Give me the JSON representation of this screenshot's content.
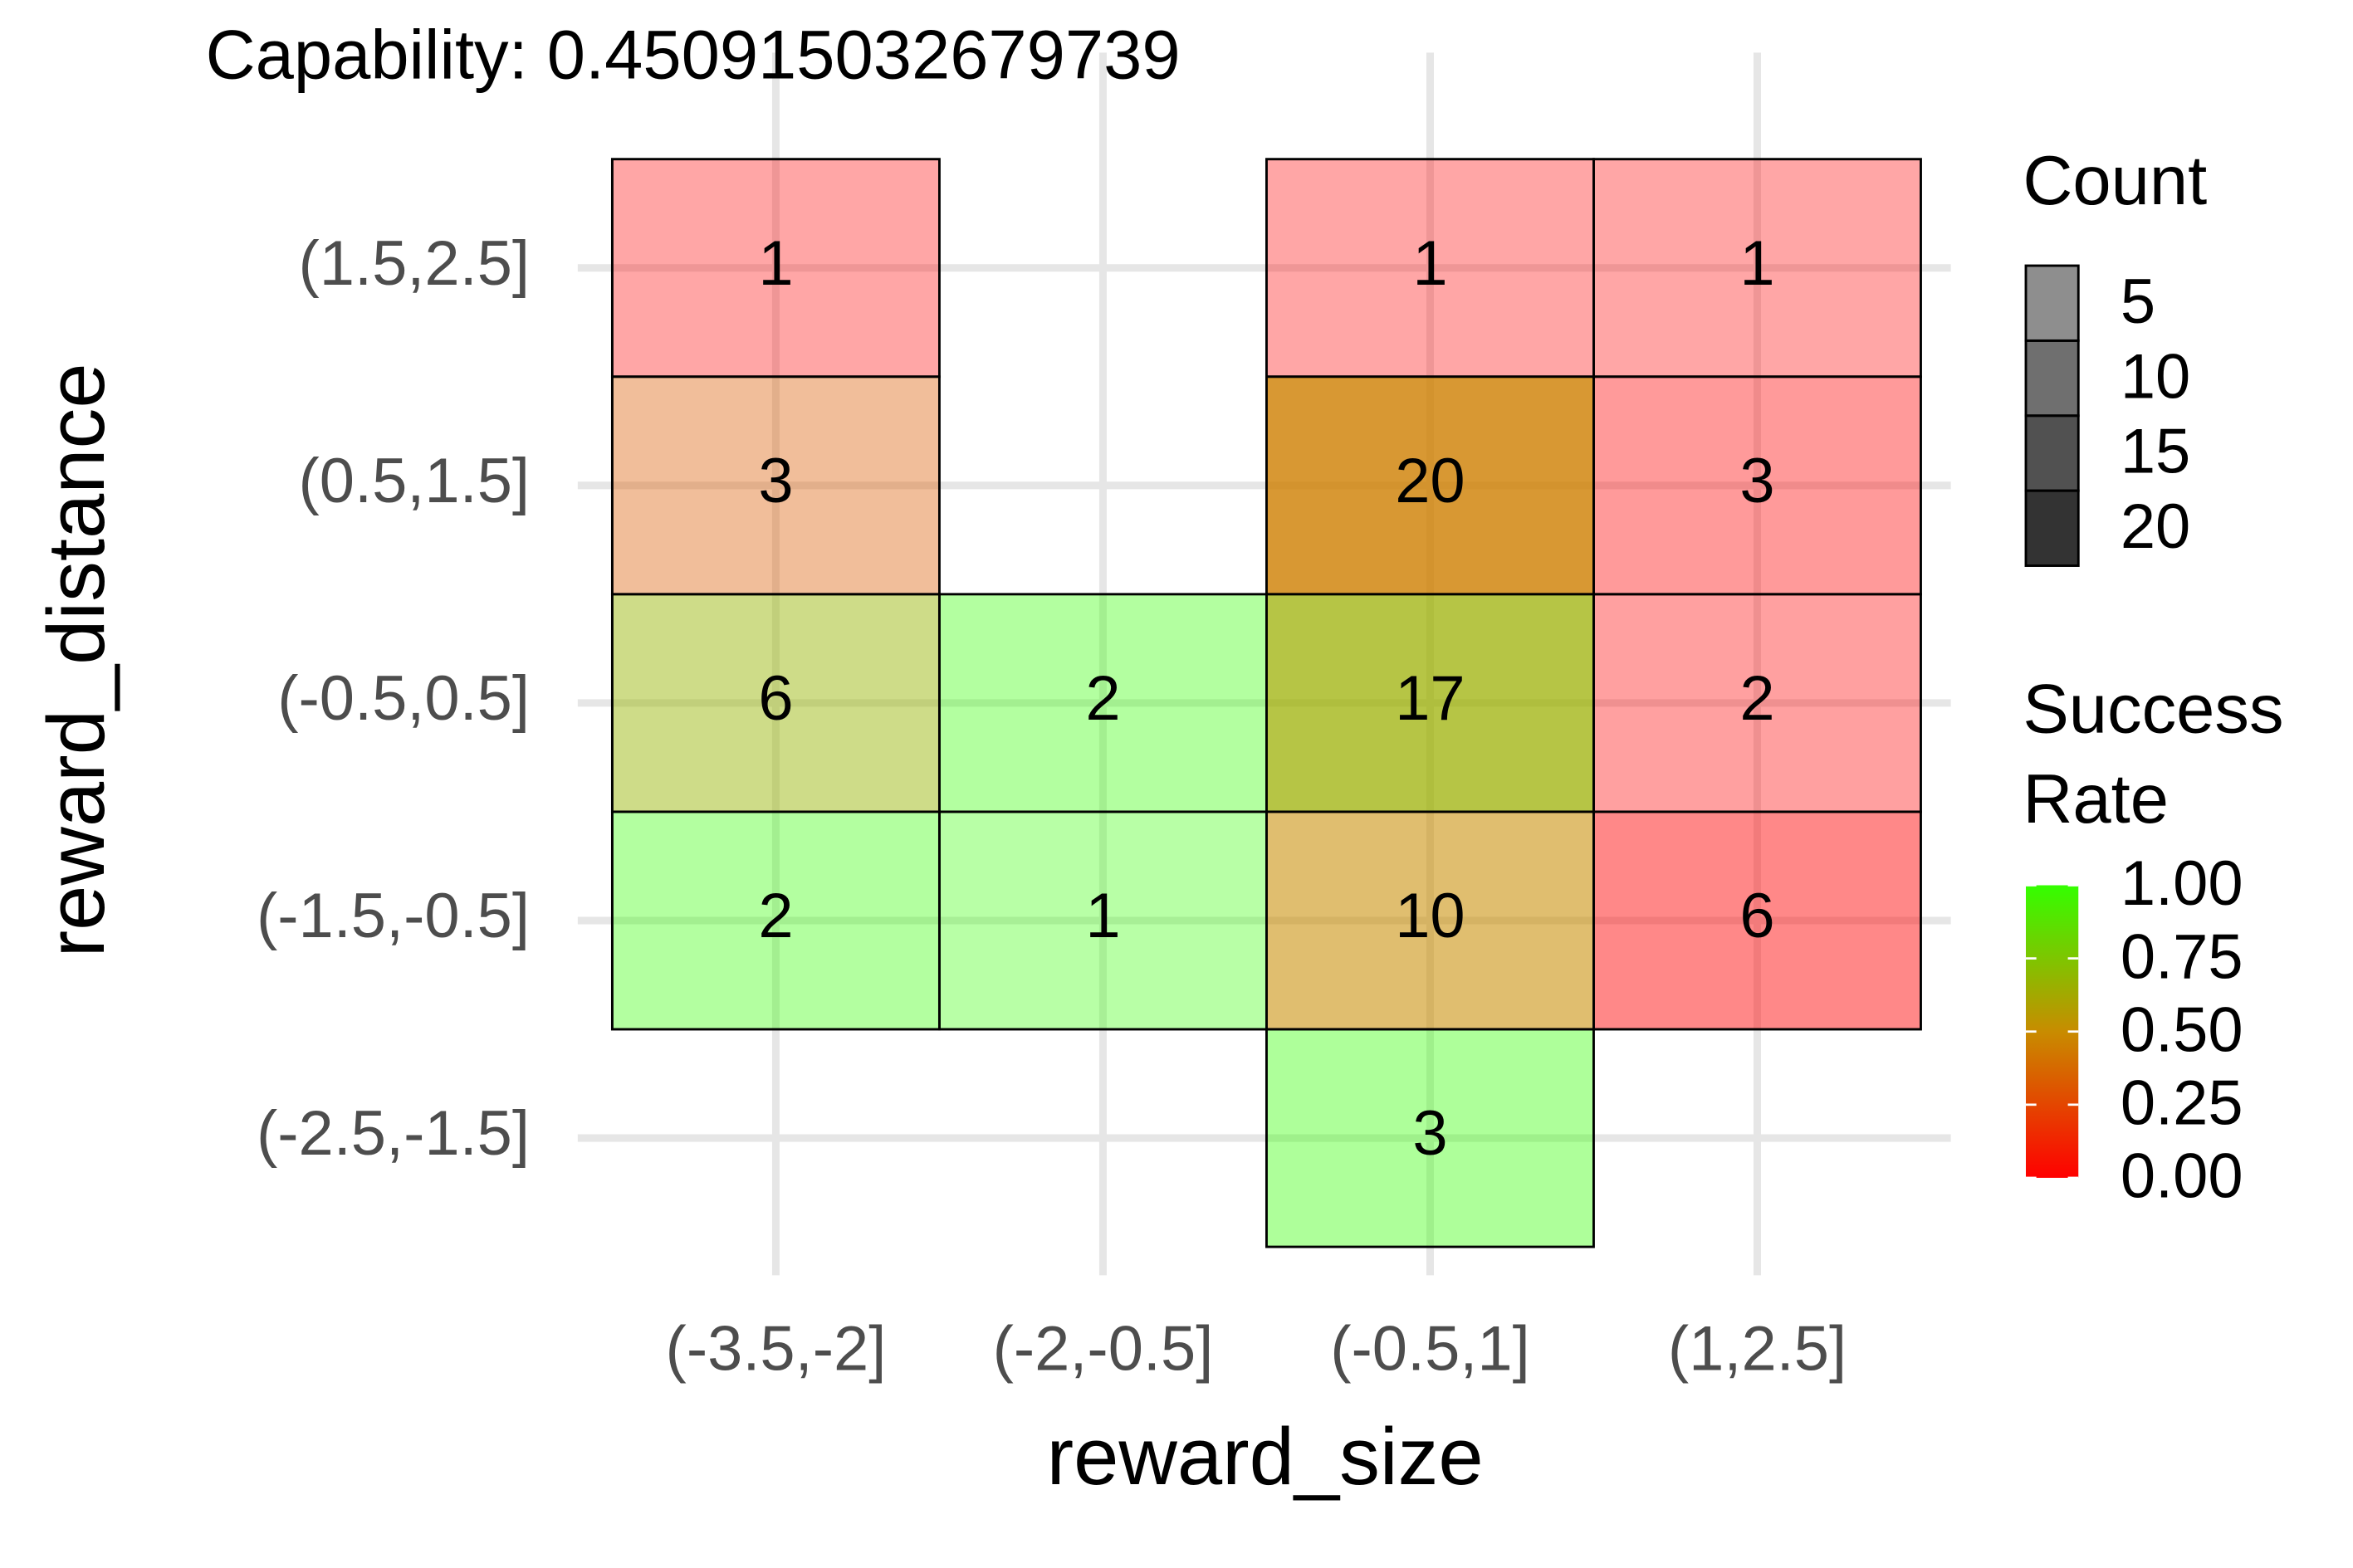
{
  "chart_data": {
    "type": "heatmap",
    "title": "Capability:  0.450915032679739",
    "x_label": "reward_size",
    "y_label": "reward_distance",
    "x_categories": [
      "(-3.5,-2]",
      "(-2,-0.5]",
      "(-0.5,1]",
      "(1,2.5]"
    ],
    "y_categories": [
      "(-2.5,-1.5]",
      "(-1.5,-0.5]",
      "(-0.5,0.5]",
      "(0.5,1.5]",
      "(1.5,2.5]"
    ],
    "cells": [
      {
        "x": "(-3.5,-2]",
        "y": "(1.5,2.5]",
        "count": 1,
        "success_rate": 0
      },
      {
        "x": "(-0.5,1]",
        "y": "(1.5,2.5]",
        "count": 1,
        "success_rate": 0
      },
      {
        "x": "(1,2.5]",
        "y": "(1.5,2.5]",
        "count": 1,
        "success_rate": 0
      },
      {
        "x": "(-3.5,-2]",
        "y": "(0.5,1.5]",
        "count": 3,
        "success_rate": 0.33
      },
      {
        "x": "(-0.5,1]",
        "y": "(0.5,1.5]",
        "count": 20,
        "success_rate": 0.45
      },
      {
        "x": "(1,2.5]",
        "y": "(0.5,1.5]",
        "count": 3,
        "success_rate": 0
      },
      {
        "x": "(-3.5,-2]",
        "y": "(-0.5,0.5]",
        "count": 6,
        "success_rate": 0.67
      },
      {
        "x": "(-2,-0.5]",
        "y": "(-0.5,0.5]",
        "count": 2,
        "success_rate": 1
      },
      {
        "x": "(-0.5,1]",
        "y": "(-0.5,0.5]",
        "count": 17,
        "success_rate": 0.65
      },
      {
        "x": "(1,2.5]",
        "y": "(-0.5,0.5]",
        "count": 2,
        "success_rate": 0
      },
      {
        "x": "(-3.5,-2]",
        "y": "(-1.5,-0.5]",
        "count": 2,
        "success_rate": 1
      },
      {
        "x": "(-2,-0.5]",
        "y": "(-1.5,-0.5]",
        "count": 1,
        "success_rate": 1
      },
      {
        "x": "(-0.5,1]",
        "y": "(-1.5,-0.5]",
        "count": 10,
        "success_rate": 0.5
      },
      {
        "x": "(1,2.5]",
        "y": "(-1.5,-0.5]",
        "count": 6,
        "success_rate": 0
      },
      {
        "x": "(-0.5,1]",
        "y": "(-2.5,-1.5]",
        "count": 3,
        "success_rate": 1
      }
    ],
    "color_scale": [
      "#ff0000",
      "#c88c00",
      "#33ff00"
    ],
    "alpha_range": [
      0.35,
      0.8
    ],
    "grid": true,
    "count_legend_title": "Count",
    "count_legend_ticks": [
      5,
      10,
      15,
      20
    ],
    "fill_legend_title": [
      "Success",
      "Rate"
    ],
    "fill_legend_lim": [
      0,
      1
    ],
    "fill_legend_ticks": [
      {
        "value": 1,
        "label": "1.00"
      },
      {
        "value": 0.75,
        "label": "0.75"
      },
      {
        "value": 0.5,
        "label": "0.50"
      },
      {
        "value": 0.25,
        "label": "0.25"
      },
      {
        "value": 0,
        "label": "0.00"
      }
    ]
  }
}
